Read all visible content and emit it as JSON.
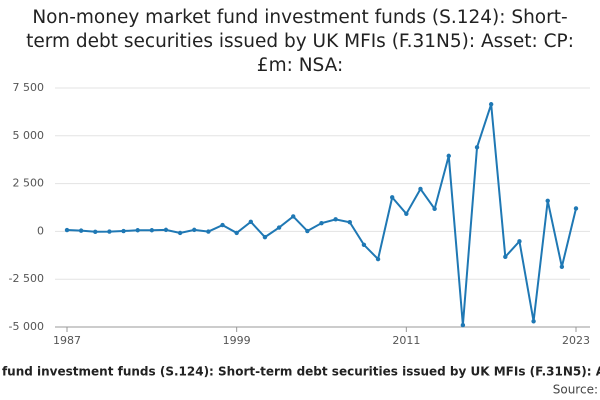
{
  "chart_data": {
    "type": "line",
    "title": "Non-money market fund investment funds (S.124): Short-term debt securities issued by UK MFIs (F.31N5): Asset: CP: £m: NSA:",
    "x": [
      1987,
      1988,
      1989,
      1990,
      1991,
      1992,
      1993,
      1994,
      1995,
      1996,
      1997,
      1998,
      1999,
      2000,
      2001,
      2002,
      2003,
      2004,
      2005,
      2006,
      2007,
      2008,
      2009,
      2010,
      2011,
      2012,
      2013,
      2014,
      2015,
      2016,
      2017,
      2018,
      2019,
      2020,
      2021,
      2022,
      2023
    ],
    "series": [
      {
        "name": "Non-money market fund investment funds (S.124): Short-term debt securities issued by UK MFIs (F.31N5): Asset: CP: £m: NSA:",
        "color": "#1f78b4",
        "values": [
          70,
          40,
          -20,
          -10,
          20,
          60,
          60,
          80,
          -80,
          80,
          -10,
          330,
          -80,
          500,
          -300,
          200,
          780,
          20,
          430,
          630,
          480,
          -700,
          -1450,
          1780,
          920,
          2220,
          1180,
          3950,
          -4900,
          4400,
          6650,
          -1330,
          -520,
          -4700,
          1600,
          -1850,
          1200
        ]
      }
    ],
    "xlim": [
      1987,
      2023
    ],
    "xticks": [
      1987,
      1999,
      2011,
      2023
    ],
    "ylim": [
      -5000,
      7500
    ],
    "yticks": [
      {
        "value": -5000,
        "label": "-5 000"
      },
      {
        "value": -2500,
        "label": "-2 500"
      },
      0,
      {
        "value": 2500,
        "label": "2 500"
      },
      {
        "value": 5000,
        "label": "5 000"
      },
      {
        "value": 7500,
        "label": "7 500"
      }
    ],
    "grid": true,
    "source": "Source:"
  }
}
